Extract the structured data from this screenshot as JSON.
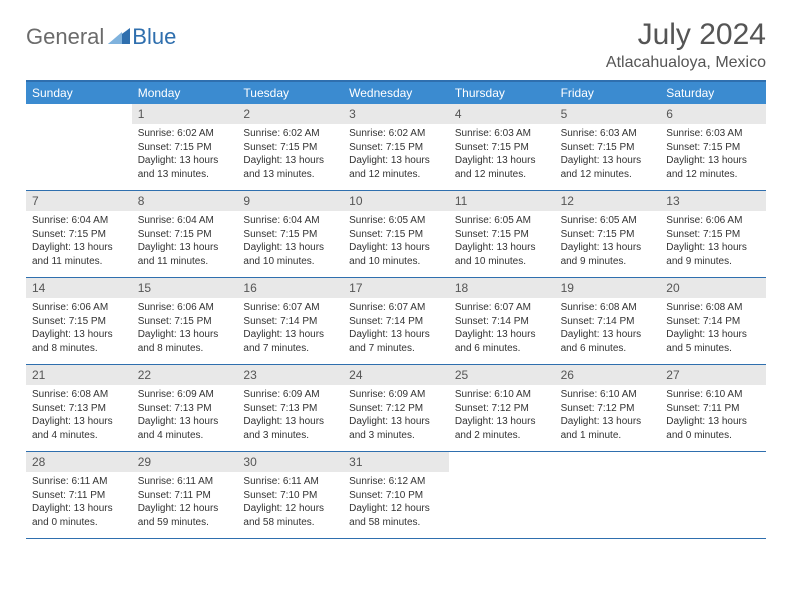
{
  "logo": {
    "general": "General",
    "blue": "Blue"
  },
  "title": "July 2024",
  "location": "Atlacahualoya, Mexico",
  "colors": {
    "header_bar": "#3b8bd0",
    "border": "#2f6fae",
    "daynum_bg": "#e8e8e8",
    "text": "#333333",
    "title_text": "#555555"
  },
  "weekdays": [
    "Sunday",
    "Monday",
    "Tuesday",
    "Wednesday",
    "Thursday",
    "Friday",
    "Saturday"
  ],
  "weeks": [
    [
      null,
      {
        "n": "1",
        "sr": "Sunrise: 6:02 AM",
        "ss": "Sunset: 7:15 PM",
        "dl": "Daylight: 13 hours and 13 minutes."
      },
      {
        "n": "2",
        "sr": "Sunrise: 6:02 AM",
        "ss": "Sunset: 7:15 PM",
        "dl": "Daylight: 13 hours and 13 minutes."
      },
      {
        "n": "3",
        "sr": "Sunrise: 6:02 AM",
        "ss": "Sunset: 7:15 PM",
        "dl": "Daylight: 13 hours and 12 minutes."
      },
      {
        "n": "4",
        "sr": "Sunrise: 6:03 AM",
        "ss": "Sunset: 7:15 PM",
        "dl": "Daylight: 13 hours and 12 minutes."
      },
      {
        "n": "5",
        "sr": "Sunrise: 6:03 AM",
        "ss": "Sunset: 7:15 PM",
        "dl": "Daylight: 13 hours and 12 minutes."
      },
      {
        "n": "6",
        "sr": "Sunrise: 6:03 AM",
        "ss": "Sunset: 7:15 PM",
        "dl": "Daylight: 13 hours and 12 minutes."
      }
    ],
    [
      {
        "n": "7",
        "sr": "Sunrise: 6:04 AM",
        "ss": "Sunset: 7:15 PM",
        "dl": "Daylight: 13 hours and 11 minutes."
      },
      {
        "n": "8",
        "sr": "Sunrise: 6:04 AM",
        "ss": "Sunset: 7:15 PM",
        "dl": "Daylight: 13 hours and 11 minutes."
      },
      {
        "n": "9",
        "sr": "Sunrise: 6:04 AM",
        "ss": "Sunset: 7:15 PM",
        "dl": "Daylight: 13 hours and 10 minutes."
      },
      {
        "n": "10",
        "sr": "Sunrise: 6:05 AM",
        "ss": "Sunset: 7:15 PM",
        "dl": "Daylight: 13 hours and 10 minutes."
      },
      {
        "n": "11",
        "sr": "Sunrise: 6:05 AM",
        "ss": "Sunset: 7:15 PM",
        "dl": "Daylight: 13 hours and 10 minutes."
      },
      {
        "n": "12",
        "sr": "Sunrise: 6:05 AM",
        "ss": "Sunset: 7:15 PM",
        "dl": "Daylight: 13 hours and 9 minutes."
      },
      {
        "n": "13",
        "sr": "Sunrise: 6:06 AM",
        "ss": "Sunset: 7:15 PM",
        "dl": "Daylight: 13 hours and 9 minutes."
      }
    ],
    [
      {
        "n": "14",
        "sr": "Sunrise: 6:06 AM",
        "ss": "Sunset: 7:15 PM",
        "dl": "Daylight: 13 hours and 8 minutes."
      },
      {
        "n": "15",
        "sr": "Sunrise: 6:06 AM",
        "ss": "Sunset: 7:15 PM",
        "dl": "Daylight: 13 hours and 8 minutes."
      },
      {
        "n": "16",
        "sr": "Sunrise: 6:07 AM",
        "ss": "Sunset: 7:14 PM",
        "dl": "Daylight: 13 hours and 7 minutes."
      },
      {
        "n": "17",
        "sr": "Sunrise: 6:07 AM",
        "ss": "Sunset: 7:14 PM",
        "dl": "Daylight: 13 hours and 7 minutes."
      },
      {
        "n": "18",
        "sr": "Sunrise: 6:07 AM",
        "ss": "Sunset: 7:14 PM",
        "dl": "Daylight: 13 hours and 6 minutes."
      },
      {
        "n": "19",
        "sr": "Sunrise: 6:08 AM",
        "ss": "Sunset: 7:14 PM",
        "dl": "Daylight: 13 hours and 6 minutes."
      },
      {
        "n": "20",
        "sr": "Sunrise: 6:08 AM",
        "ss": "Sunset: 7:14 PM",
        "dl": "Daylight: 13 hours and 5 minutes."
      }
    ],
    [
      {
        "n": "21",
        "sr": "Sunrise: 6:08 AM",
        "ss": "Sunset: 7:13 PM",
        "dl": "Daylight: 13 hours and 4 minutes."
      },
      {
        "n": "22",
        "sr": "Sunrise: 6:09 AM",
        "ss": "Sunset: 7:13 PM",
        "dl": "Daylight: 13 hours and 4 minutes."
      },
      {
        "n": "23",
        "sr": "Sunrise: 6:09 AM",
        "ss": "Sunset: 7:13 PM",
        "dl": "Daylight: 13 hours and 3 minutes."
      },
      {
        "n": "24",
        "sr": "Sunrise: 6:09 AM",
        "ss": "Sunset: 7:12 PM",
        "dl": "Daylight: 13 hours and 3 minutes."
      },
      {
        "n": "25",
        "sr": "Sunrise: 6:10 AM",
        "ss": "Sunset: 7:12 PM",
        "dl": "Daylight: 13 hours and 2 minutes."
      },
      {
        "n": "26",
        "sr": "Sunrise: 6:10 AM",
        "ss": "Sunset: 7:12 PM",
        "dl": "Daylight: 13 hours and 1 minute."
      },
      {
        "n": "27",
        "sr": "Sunrise: 6:10 AM",
        "ss": "Sunset: 7:11 PM",
        "dl": "Daylight: 13 hours and 0 minutes."
      }
    ],
    [
      {
        "n": "28",
        "sr": "Sunrise: 6:11 AM",
        "ss": "Sunset: 7:11 PM",
        "dl": "Daylight: 13 hours and 0 minutes."
      },
      {
        "n": "29",
        "sr": "Sunrise: 6:11 AM",
        "ss": "Sunset: 7:11 PM",
        "dl": "Daylight: 12 hours and 59 minutes."
      },
      {
        "n": "30",
        "sr": "Sunrise: 6:11 AM",
        "ss": "Sunset: 7:10 PM",
        "dl": "Daylight: 12 hours and 58 minutes."
      },
      {
        "n": "31",
        "sr": "Sunrise: 6:12 AM",
        "ss": "Sunset: 7:10 PM",
        "dl": "Daylight: 12 hours and 58 minutes."
      },
      null,
      null,
      null
    ]
  ]
}
